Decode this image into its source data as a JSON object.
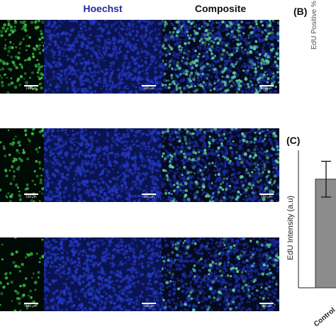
{
  "headers": {
    "hoechst": "Hoechst",
    "composite": "Composite"
  },
  "panels": {
    "b": "(B)",
    "c": "(C)"
  },
  "scale_bar_label": "100 µm",
  "colors": {
    "green": "#3cc94a",
    "blue": "#1b2fb5",
    "background_dark": "#050a20"
  },
  "rows": [
    {
      "density": "high"
    },
    {
      "density": "medium"
    },
    {
      "density": "low"
    }
  ],
  "chart_b": {
    "ylabel": "EdU Positive %"
  },
  "chart_data": {
    "type": "bar",
    "ylabel": "EdU Intensity (a.u)",
    "categories": [
      "Control"
    ],
    "values": [
      0.79
    ],
    "error": [
      0.13
    ]
  }
}
